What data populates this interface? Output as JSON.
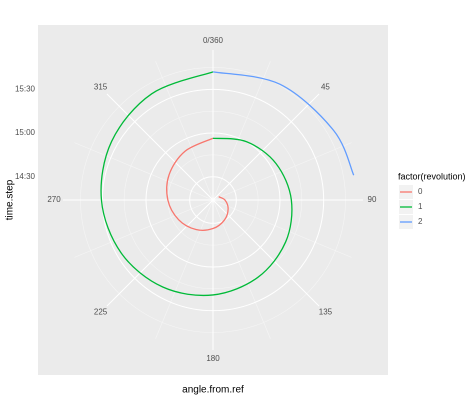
{
  "chart_data": {
    "type": "polar-line",
    "x_label": "angle.from.ref",
    "y_label": "time.step",
    "legend_title": "factor(revolution)",
    "xlim": [
      0,
      360
    ],
    "xticks": [
      {
        "value": 0,
        "label": "0/360"
      },
      45,
      90,
      135,
      180,
      225,
      270,
      315
    ],
    "ylim": [
      854,
      957
    ],
    "yticks": [
      {
        "value": 870,
        "label": "14:30"
      },
      {
        "value": 900,
        "label": "15:00"
      },
      {
        "value": 930,
        "label": "15:30"
      }
    ],
    "grid": true,
    "series": [
      {
        "name": "0",
        "color": "#F8766D",
        "x": [
          60,
          90,
          120,
          150,
          180,
          210,
          240,
          270,
          300,
          330,
          360
        ],
        "values": [
          858.5,
          862.2,
          866.0,
          869.8,
          873.6,
          877.4,
          881.2,
          885.0,
          888.8,
          892.6,
          896.4
        ]
      },
      {
        "name": "1",
        "color": "#00BA38",
        "x": [
          0,
          30,
          60,
          90,
          120,
          150,
          180,
          210,
          240,
          270,
          300,
          330,
          360
        ],
        "values": [
          896.4,
          900.2,
          904.0,
          907.8,
          911.6,
          915.4,
          919.2,
          923.0,
          926.8,
          930.6,
          934.4,
          938.2,
          942.0
        ]
      },
      {
        "name": "2",
        "color": "#619CFF",
        "x": [
          0,
          30,
          60,
          80
        ],
        "values": [
          942.0,
          945.8,
          949.6,
          952.1
        ]
      }
    ]
  }
}
